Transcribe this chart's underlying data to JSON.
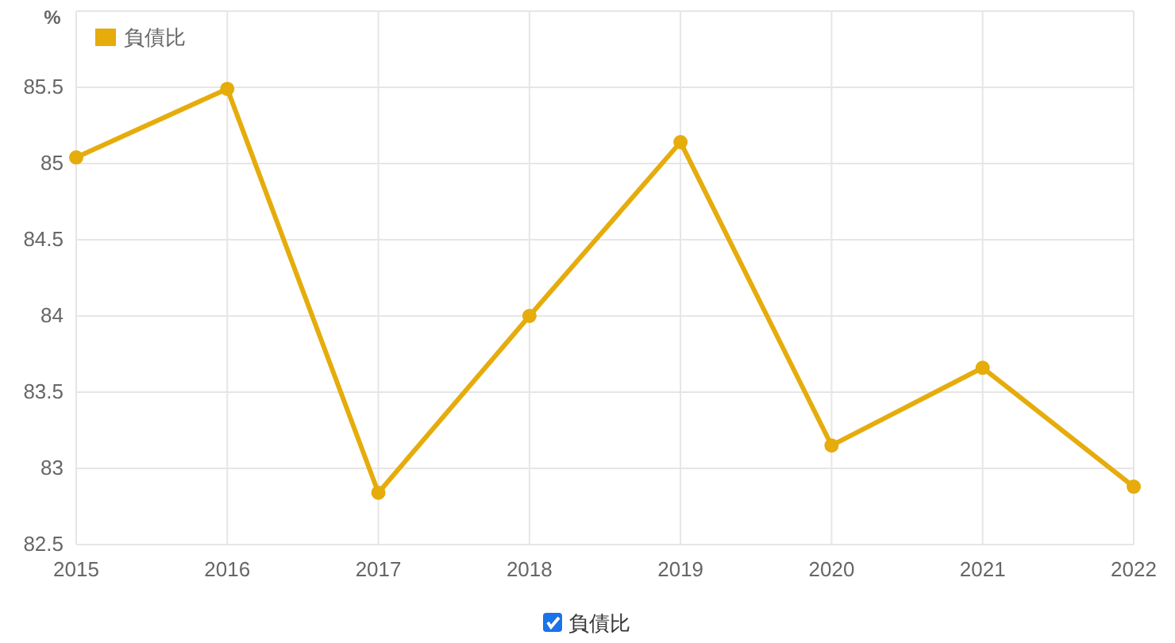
{
  "chart_data": {
    "type": "line",
    "ylabel": "%",
    "categories": [
      "2015",
      "2016",
      "2017",
      "2018",
      "2019",
      "2020",
      "2021",
      "2022"
    ],
    "series": [
      {
        "name": "負債比",
        "color": "#e5ac0c",
        "values": [
          85.04,
          85.49,
          82.84,
          84.0,
          85.14,
          83.15,
          83.66,
          82.88
        ]
      }
    ],
    "ylim": [
      82.5,
      86
    ],
    "yticks": [
      82.5,
      83,
      83.5,
      84,
      84.5,
      85,
      85.5,
      {
        "value": 86,
        "label": null
      }
    ],
    "grid": true,
    "legend": "top left",
    "marker": "circle",
    "line_style": "solid"
  }
}
